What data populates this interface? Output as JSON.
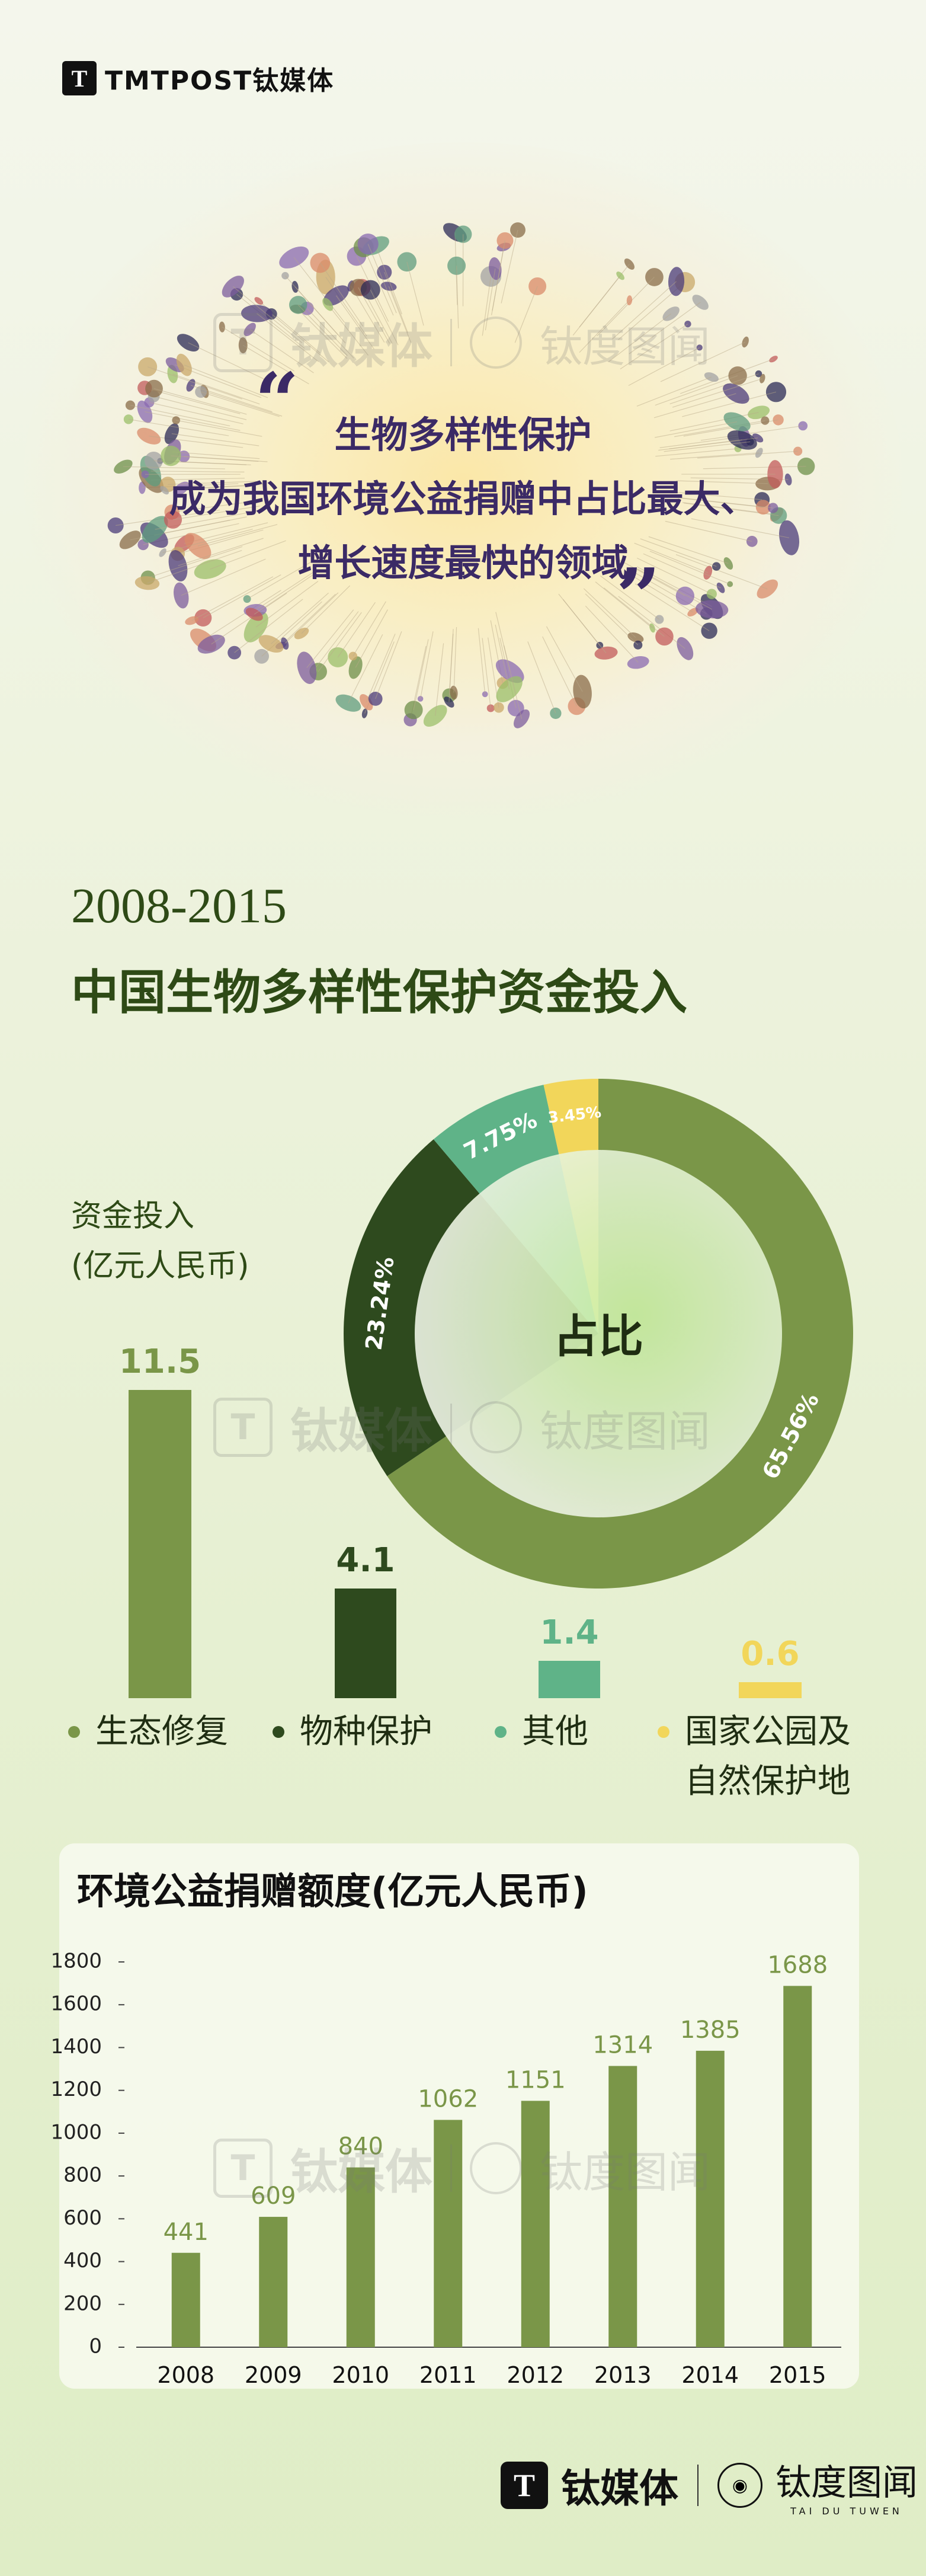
{
  "brand": {
    "logo_text": "TMTPOST钛媒体",
    "logo_mark": "T"
  },
  "hero": {
    "line1": "生物多样性保护",
    "line2": "成为我国环境公益捐赠中占比最大、",
    "line3": "增长速度最快的领域",
    "open_quote": "“",
    "close_quote": "”"
  },
  "section": {
    "year_range": "2008-2015",
    "title": "中国生物多样性保护资金投入",
    "unit_line1": "资金投入",
    "unit_line2": "(亿元人民币)"
  },
  "legend": [
    {
      "label": "生态修复",
      "color": "#7a9648"
    },
    {
      "label": "物种保护",
      "color": "#2e4a1e"
    },
    {
      "label": "其他",
      "color": "#5fb388"
    },
    {
      "label": "国家公园及",
      "label2": "自然保护地",
      "color": "#f2d65a"
    }
  ],
  "donut_center": "占比",
  "bottom_chart_title": "环境公益捐赠额度(亿元人民币)",
  "watermark": {
    "a": "钛媒体",
    "b": "钛度图闻",
    "sub": "TAI DU TUWEN"
  },
  "footer": {
    "name": "钛媒体",
    "name2": "钛度图闻",
    "sub": "TAI DU TUWEN"
  },
  "chart_data": [
    {
      "type": "bar",
      "categories": [
        "生态修复",
        "物种保护",
        "其他",
        "国家公园及自然保护地"
      ],
      "values": [
        11.5,
        4.1,
        1.4,
        0.6
      ],
      "labels": [
        "11.5",
        "4.1",
        "1.4",
        "0.6"
      ],
      "colors": [
        "#7a9648",
        "#2e4a1e",
        "#5fb388",
        "#f2d65a"
      ],
      "ylabel": "资金投入(亿元人民币)"
    },
    {
      "type": "pie",
      "categories": [
        "生态修复",
        "物种保护",
        "其他",
        "国家公园及自然保护地"
      ],
      "values": [
        65.56,
        23.24,
        7.75,
        3.45
      ],
      "labels": [
        "65.56%",
        "23.24%",
        "7.75%",
        "3.45%"
      ],
      "colors": [
        "#7a9648",
        "#2e4a1e",
        "#5fb388",
        "#f2d65a"
      ],
      "center_label": "占比"
    },
    {
      "type": "bar",
      "title": "环境公益捐赠额度(亿元人民币)",
      "categories": [
        "2008",
        "2009",
        "2010",
        "2011",
        "2012",
        "2013",
        "2014",
        "2015"
      ],
      "values": [
        441,
        609,
        840,
        1062,
        1151,
        1314,
        1385,
        1688
      ],
      "yticks": [
        0,
        200,
        400,
        600,
        800,
        1000,
        1200,
        1400,
        1600,
        1800
      ],
      "ylim": [
        0,
        1800
      ],
      "color": "#7a9648"
    }
  ]
}
